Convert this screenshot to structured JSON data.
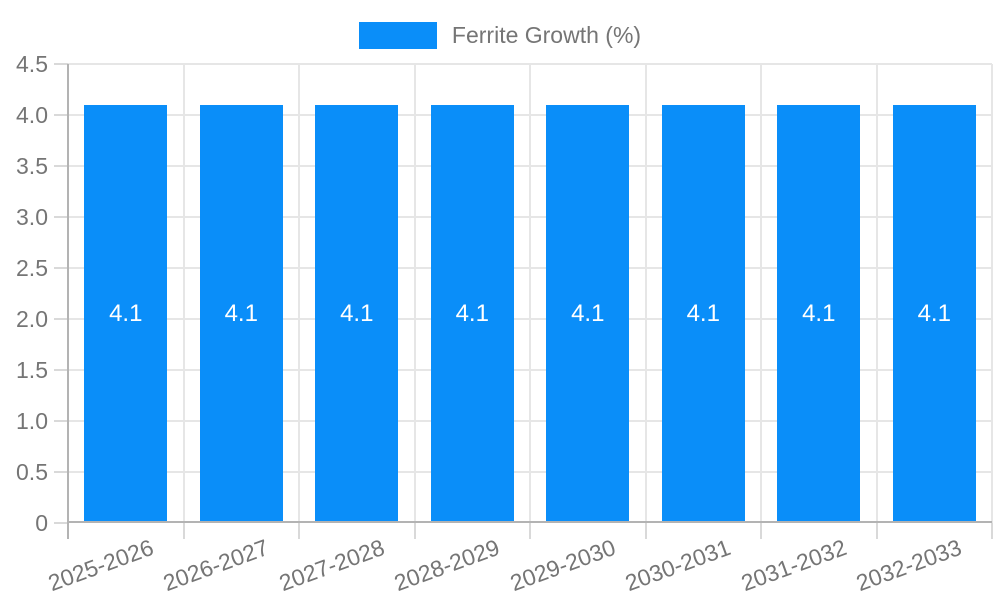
{
  "legend": {
    "label": "Ferrite Growth (%)"
  },
  "y_axis": {
    "tick_labels": [
      "0",
      "0.5",
      "1.0",
      "1.5",
      "2.0",
      "2.5",
      "3.0",
      "3.5",
      "4.0",
      "4.5"
    ]
  },
  "colors": {
    "bar": "#0a8ef9",
    "grid": "#e6e6e6",
    "tick_mark": "#d9d9d9",
    "axis_line": "#b3b3b3",
    "tick_text": "#757575",
    "value_text": "#ffffff"
  },
  "chart_data": {
    "type": "bar",
    "title": "",
    "categories": [
      "2025-2026",
      "2026-2027",
      "2027-2028",
      "2028-2029",
      "2029-2030",
      "2030-2031",
      "2031-2032",
      "2032-2033"
    ],
    "series": [
      {
        "name": "Ferrite Growth (%)",
        "values": [
          4.1,
          4.1,
          4.1,
          4.1,
          4.1,
          4.1,
          4.1,
          4.1
        ]
      }
    ],
    "value_labels": [
      "4.1",
      "4.1",
      "4.1",
      "4.1",
      "4.1",
      "4.1",
      "4.1",
      "4.1"
    ],
    "xlabel": "",
    "ylabel": "",
    "ylim": [
      0,
      4.5
    ],
    "ytick_step": 0.5,
    "grid": true,
    "legend_position": "top",
    "x_label_rotation_deg": -20
  }
}
